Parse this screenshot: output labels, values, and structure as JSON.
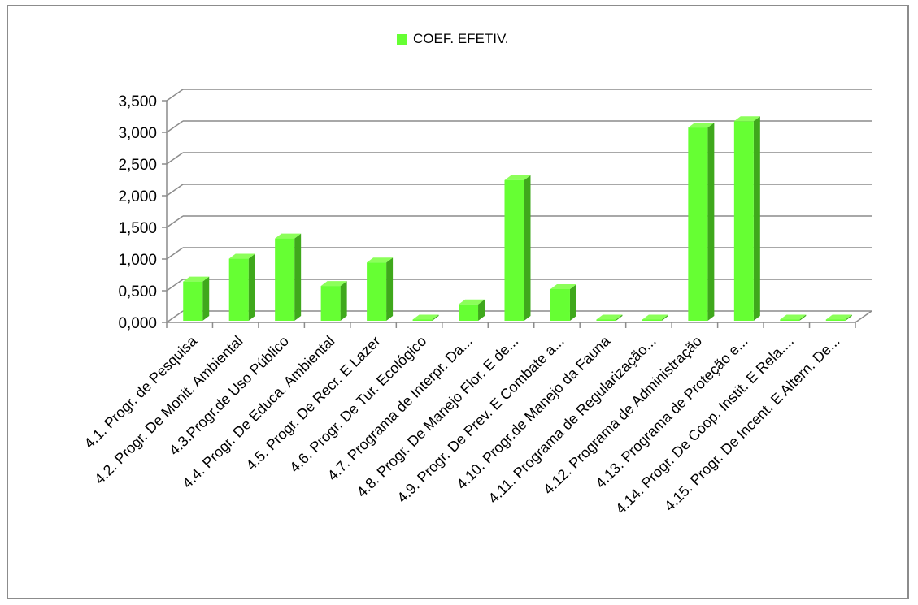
{
  "chart_data": {
    "type": "bar",
    "title": "",
    "xlabel": "",
    "ylabel": "",
    "ylim": [
      0,
      3.5
    ],
    "yticks": [
      "0,000",
      "0,500",
      "1,000",
      "1,500",
      "2,000",
      "2,500",
      "3,000",
      "3,500"
    ],
    "grid": true,
    "legend_position": "top",
    "three_d": true,
    "categories": [
      "4.1. Progr. de Pesquisa",
      "4.2. Progr. De Monit. Ambiental",
      "4.3.Progr.de Uso Público",
      "4.4. Progr. De Educa. Ambiental",
      "4.5. Progr. De Recr. E Lazer",
      "4.6. Progr. De Tur. Ecológico",
      "4.7. Programa de Interpr. Da...",
      "4.8. Progr. De Manejo Flor. E de...",
      "4.9. Progr. De Prev. E Combate a...",
      "4.10. Progr.de Manejo da Fauna",
      "4.11. Programa de Regularização...",
      "4.12. Programa de Administração",
      "4.13. Programa de Proteção e...",
      "4.14. Progr. De Coop. Instit. E Rela....",
      "4.15. Progr. De Incent. E Altern. De..."
    ],
    "series": [
      {
        "name": "COEF. EFETIV.",
        "color": "#66ff33",
        "values": [
          0.62,
          0.98,
          1.3,
          0.55,
          0.92,
          0.0,
          0.26,
          2.22,
          0.5,
          0.0,
          0.0,
          3.05,
          3.15,
          0.0,
          0.0
        ]
      }
    ]
  }
}
